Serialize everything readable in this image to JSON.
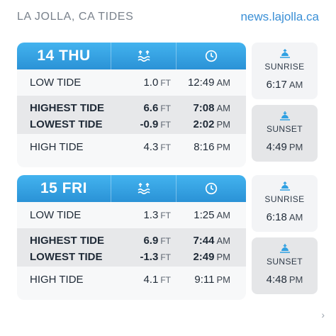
{
  "header": {
    "title": "LA JOLLA, CA TIDES",
    "site": "news.lajolla.ca"
  },
  "days": [
    {
      "label": "14 THU",
      "rows": [
        {
          "label": "LOW TIDE",
          "height": "1.0",
          "unit": "FT",
          "time": "12:49",
          "ampm": "AM"
        },
        {
          "label": "HIGHEST TIDE",
          "height": "6.6",
          "unit": "FT",
          "time": "7:08",
          "ampm": "AM"
        },
        {
          "label": "LOWEST TIDE",
          "height": "-0.9",
          "unit": "FT",
          "time": "2:02",
          "ampm": "PM"
        },
        {
          "label": "HIGH TIDE",
          "height": "4.3",
          "unit": "FT",
          "time": "8:16",
          "ampm": "PM"
        }
      ],
      "sunrise": {
        "label": "SUNRISE",
        "time": "6:17",
        "ampm": "AM"
      },
      "sunset": {
        "label": "SUNSET",
        "time": "4:49",
        "ampm": "PM"
      }
    },
    {
      "label": "15 FRI",
      "rows": [
        {
          "label": "LOW TIDE",
          "height": "1.3",
          "unit": "FT",
          "time": "1:25",
          "ampm": "AM"
        },
        {
          "label": "HIGHEST TIDE",
          "height": "6.9",
          "unit": "FT",
          "time": "7:44",
          "ampm": "AM"
        },
        {
          "label": "LOWEST TIDE",
          "height": "-1.3",
          "unit": "FT",
          "time": "2:49",
          "ampm": "PM"
        },
        {
          "label": "HIGH TIDE",
          "height": "4.1",
          "unit": "FT",
          "time": "9:11",
          "ampm": "PM"
        }
      ],
      "sunrise": {
        "label": "SUNRISE",
        "time": "6:18",
        "ampm": "AM"
      },
      "sunset": {
        "label": "SUNSET",
        "time": "4:48",
        "ampm": "PM"
      }
    }
  ],
  "icons": {
    "tide_column": "tide-waves-icon",
    "time_column": "clock-icon",
    "sunrise": "sunrise-icon",
    "sunset": "sunset-icon",
    "next": "chevron-right-icon"
  },
  "colors": {
    "header_blue": "#2a92d6",
    "site_link": "#3a8fd6"
  }
}
